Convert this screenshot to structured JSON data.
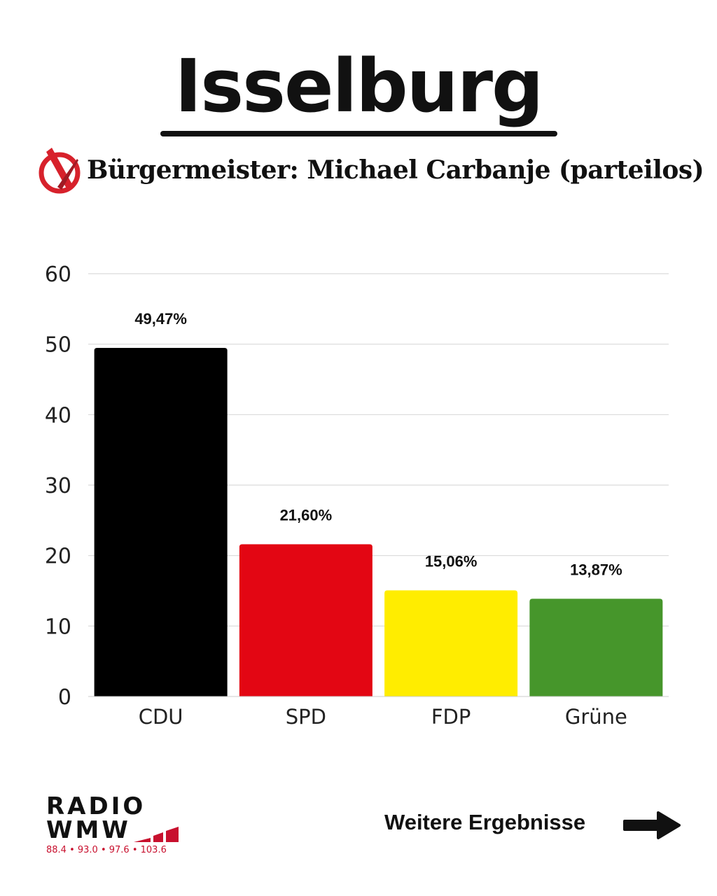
{
  "header": {
    "title": "Isselburg",
    "subtitle": "Bürgermeister: Michael Carbanje (parteilos)",
    "icon": "ballot-cross-icon"
  },
  "chart_data": {
    "type": "bar",
    "categories": [
      "CDU",
      "SPD",
      "FDP",
      "Grüne"
    ],
    "values": [
      49.47,
      21.6,
      15.06,
      13.87
    ],
    "data_labels": [
      "49,47%",
      "21,60%",
      "15,06%",
      "13,87%"
    ],
    "colors": [
      "#000000",
      "#e30613",
      "#ffed00",
      "#46962b"
    ],
    "ylim": [
      0,
      60
    ],
    "yticks": [
      0,
      10,
      20,
      30,
      40,
      50,
      60
    ],
    "grid": true,
    "title": "",
    "xlabel": "",
    "ylabel": ""
  },
  "footer": {
    "logo_line1": "RADIO",
    "logo_line2": "WMW",
    "frequencies": "88.4 • 93.0 • 97.6 • 103.6",
    "more_label": "Weitere Ergebnisse",
    "accent": "#c8102e"
  }
}
